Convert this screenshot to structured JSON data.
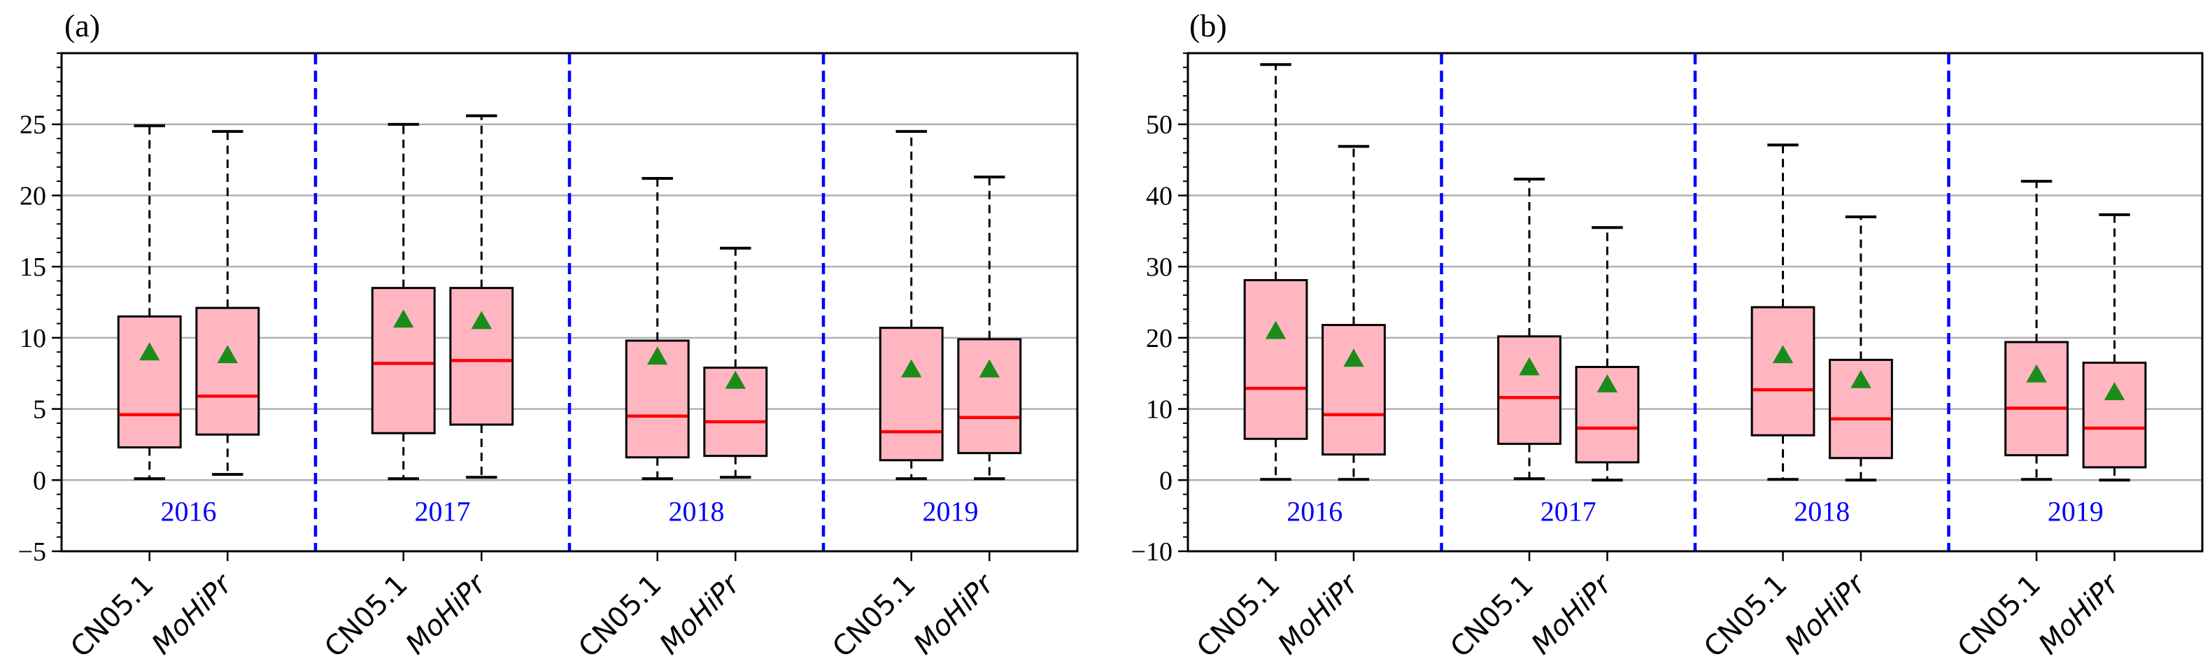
{
  "chart_data": [
    {
      "type": "box",
      "panel_label": "(a)",
      "ylim": [
        -5,
        30
      ],
      "yticks": [
        -5,
        0,
        5,
        10,
        15,
        20,
        25
      ],
      "ytick_labels": [
        "−5",
        "0",
        "5",
        "10",
        "15",
        "20",
        "25"
      ],
      "grid": true,
      "groups": [
        {
          "year": "2016",
          "boxes": [
            {
              "name": "CN05.1",
              "whisker_low": 0.1,
              "q1": 2.3,
              "median": 4.6,
              "q3": 11.5,
              "whisker_high": 24.9,
              "mean": 9.0
            },
            {
              "name": "MoHiPr",
              "whisker_low": 0.4,
              "q1": 3.2,
              "median": 5.9,
              "q3": 12.1,
              "whisker_high": 24.5,
              "mean": 8.8
            }
          ]
        },
        {
          "year": "2017",
          "boxes": [
            {
              "name": "CN05.1",
              "whisker_low": 0.1,
              "q1": 3.3,
              "median": 8.2,
              "q3": 13.5,
              "whisker_high": 25.0,
              "mean": 11.3
            },
            {
              "name": "MoHiPr",
              "whisker_low": 0.2,
              "q1": 3.9,
              "median": 8.4,
              "q3": 13.5,
              "whisker_high": 25.6,
              "mean": 11.2
            }
          ]
        },
        {
          "year": "2018",
          "boxes": [
            {
              "name": "CN05.1",
              "whisker_low": 0.1,
              "q1": 1.6,
              "median": 4.5,
              "q3": 9.8,
              "whisker_high": 21.2,
              "mean": 8.7
            },
            {
              "name": "MoHiPr",
              "whisker_low": 0.2,
              "q1": 1.7,
              "median": 4.1,
              "q3": 7.9,
              "whisker_high": 16.3,
              "mean": 7.0
            }
          ]
        },
        {
          "year": "2019",
          "boxes": [
            {
              "name": "CN05.1",
              "whisker_low": 0.1,
              "q1": 1.4,
              "median": 3.4,
              "q3": 10.7,
              "whisker_high": 24.5,
              "mean": 7.8
            },
            {
              "name": "MoHiPr",
              "whisker_low": 0.1,
              "q1": 1.9,
              "median": 4.4,
              "q3": 9.9,
              "whisker_high": 21.3,
              "mean": 7.8
            }
          ]
        }
      ]
    },
    {
      "type": "box",
      "panel_label": "(b)",
      "ylim": [
        -10,
        60
      ],
      "yticks": [
        -10,
        0,
        10,
        20,
        30,
        40,
        50
      ],
      "ytick_labels": [
        "−10",
        "0",
        "10",
        "20",
        "30",
        "40",
        "50"
      ],
      "grid": true,
      "groups": [
        {
          "year": "2016",
          "boxes": [
            {
              "name": "CN05.1",
              "whisker_low": 0.1,
              "q1": 5.8,
              "median": 12.9,
              "q3": 28.1,
              "whisker_high": 58.4,
              "mean": 21.0
            },
            {
              "name": "MoHiPr",
              "whisker_low": 0.1,
              "q1": 3.6,
              "median": 9.2,
              "q3": 21.8,
              "whisker_high": 46.9,
              "mean": 17.1
            }
          ]
        },
        {
          "year": "2017",
          "boxes": [
            {
              "name": "CN05.1",
              "whisker_low": 0.2,
              "q1": 5.1,
              "median": 11.6,
              "q3": 20.2,
              "whisker_high": 42.3,
              "mean": 15.9
            },
            {
              "name": "MoHiPr",
              "whisker_low": 0.0,
              "q1": 2.5,
              "median": 7.3,
              "q3": 15.9,
              "whisker_high": 35.5,
              "mean": 13.5
            }
          ]
        },
        {
          "year": "2018",
          "boxes": [
            {
              "name": "CN05.1",
              "whisker_low": 0.1,
              "q1": 6.3,
              "median": 12.7,
              "q3": 24.3,
              "whisker_high": 47.1,
              "mean": 17.6
            },
            {
              "name": "MoHiPr",
              "whisker_low": 0.0,
              "q1": 3.1,
              "median": 8.6,
              "q3": 16.9,
              "whisker_high": 37.0,
              "mean": 14.1
            }
          ]
        },
        {
          "year": "2019",
          "boxes": [
            {
              "name": "CN05.1",
              "whisker_low": 0.1,
              "q1": 3.5,
              "median": 10.1,
              "q3": 19.4,
              "whisker_high": 42.0,
              "mean": 14.9
            },
            {
              "name": "MoHiPr",
              "whisker_low": 0.0,
              "q1": 1.8,
              "median": 7.3,
              "q3": 16.5,
              "whisker_high": 37.3,
              "mean": 12.4
            }
          ]
        }
      ]
    }
  ],
  "colors": {
    "box_fill": "#ffb6c1",
    "median": "#ff0000",
    "mean_marker": "#1a8c1a",
    "year_label": "#0000ff",
    "separator": "#0000ff",
    "grid": "#b0b0b0"
  }
}
